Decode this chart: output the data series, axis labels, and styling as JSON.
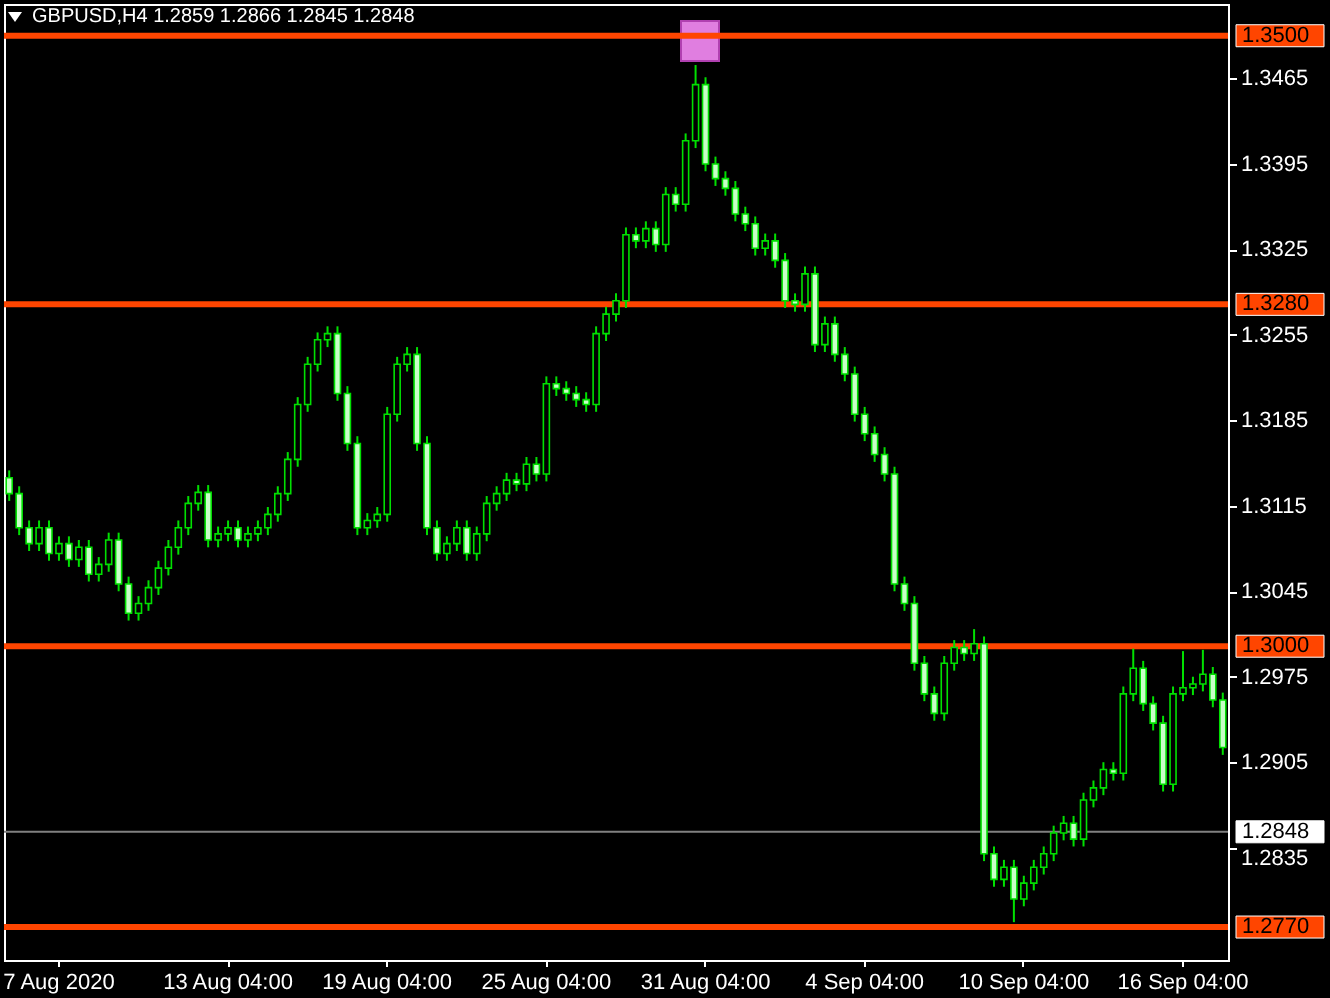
{
  "chart_data": {
    "type": "candlestick",
    "title": "GBPUSD,H4  1.2859 1.2866 1.2845 1.2848",
    "categories": [
      null,
      null,
      null,
      null,
      null,
      "7 Aug 2020",
      null,
      null,
      null,
      null,
      null,
      null,
      null,
      null,
      null,
      null,
      null,
      null,
      null,
      null,
      null,
      null,
      "13 Aug 04:00",
      null,
      null,
      null,
      null,
      null,
      null,
      null,
      null,
      null,
      null,
      null,
      null,
      null,
      null,
      null,
      "19 Aug 04:00",
      null,
      null,
      null,
      null,
      null,
      null,
      null,
      null,
      null,
      null,
      null,
      null,
      null,
      null,
      null,
      "25 Aug 04:00",
      null,
      null,
      null,
      null,
      null,
      null,
      null,
      null,
      null,
      null,
      null,
      null,
      null,
      null,
      null,
      "31 Aug 04:00",
      null,
      null,
      null,
      null,
      null,
      null,
      null,
      null,
      null,
      null,
      null,
      null,
      null,
      null,
      null,
      "4 Sep 04:00",
      null,
      null,
      null,
      null,
      null,
      null,
      null,
      null,
      null,
      null,
      null,
      null,
      null,
      null,
      null,
      "10 Sep 04:00",
      null,
      null,
      null,
      null,
      null,
      null,
      null,
      null,
      null,
      null,
      null,
      null,
      null,
      null,
      null,
      "16 Sep 04:00",
      null,
      null,
      null,
      null
    ],
    "ohlc": [
      [
        1.3138,
        1.3144,
        1.3119,
        1.3125
      ],
      [
        1.3125,
        1.3131,
        1.3091,
        1.3097
      ],
      [
        1.3097,
        1.3103,
        1.3078,
        1.3084
      ],
      [
        1.3084,
        1.3103,
        1.3078,
        1.3097
      ],
      [
        1.3097,
        1.3103,
        1.307,
        1.3076
      ],
      [
        1.3076,
        1.309,
        1.307,
        1.3084
      ],
      [
        1.3084,
        1.309,
        1.3065,
        1.3071
      ],
      [
        1.3071,
        1.3087,
        1.3065,
        1.3081
      ],
      [
        1.3081,
        1.3087,
        1.3053,
        1.3059
      ],
      [
        1.3059,
        1.3073,
        1.3053,
        1.3067
      ],
      [
        1.3067,
        1.3093,
        1.3061,
        1.3087
      ],
      [
        1.3087,
        1.3093,
        1.3045,
        1.3051
      ],
      [
        1.3051,
        1.3057,
        1.3021,
        1.3027
      ],
      [
        1.3027,
        1.3041,
        1.3021,
        1.3035
      ],
      [
        1.3035,
        1.3054,
        1.3029,
        1.3048
      ],
      [
        1.3048,
        1.307,
        1.3042,
        1.3064
      ],
      [
        1.3064,
        1.3087,
        1.3058,
        1.3081
      ],
      [
        1.3081,
        1.3103,
        1.3075,
        1.3097
      ],
      [
        1.3097,
        1.3123,
        1.3091,
        1.3117
      ],
      [
        1.3117,
        1.3132,
        1.3111,
        1.3126
      ],
      [
        1.3126,
        1.3132,
        1.3081,
        1.3087
      ],
      [
        1.3087,
        1.3098,
        1.3081,
        1.3092
      ],
      [
        1.3092,
        1.3103,
        1.3086,
        1.3097
      ],
      [
        1.3097,
        1.3103,
        1.3081,
        1.3087
      ],
      [
        1.3087,
        1.3098,
        1.3081,
        1.3092
      ],
      [
        1.3092,
        1.3103,
        1.3086,
        1.3097
      ],
      [
        1.3097,
        1.3114,
        1.3091,
        1.3108
      ],
      [
        1.3108,
        1.3131,
        1.3102,
        1.3125
      ],
      [
        1.3125,
        1.3159,
        1.3119,
        1.3153
      ],
      [
        1.3153,
        1.3204,
        1.3147,
        1.3198
      ],
      [
        1.3198,
        1.3237,
        1.3192,
        1.3231
      ],
      [
        1.3231,
        1.3257,
        1.3225,
        1.3251
      ],
      [
        1.3251,
        1.3262,
        1.3245,
        1.3256
      ],
      [
        1.3256,
        1.3262,
        1.3201,
        1.3207
      ],
      [
        1.3207,
        1.3213,
        1.316,
        1.3166
      ],
      [
        1.3166,
        1.3172,
        1.3091,
        1.3097
      ],
      [
        1.3097,
        1.3109,
        1.3091,
        1.3103
      ],
      [
        1.3103,
        1.3114,
        1.3097,
        1.3108
      ],
      [
        1.3108,
        1.3196,
        1.3102,
        1.319
      ],
      [
        1.319,
        1.3237,
        1.3184,
        1.3231
      ],
      [
        1.3231,
        1.3245,
        1.3225,
        1.3239
      ],
      [
        1.3239,
        1.3245,
        1.316,
        1.3166
      ],
      [
        1.3166,
        1.3172,
        1.3091,
        1.3097
      ],
      [
        1.3097,
        1.3103,
        1.307,
        1.3076
      ],
      [
        1.3076,
        1.309,
        1.307,
        1.3084
      ],
      [
        1.3084,
        1.3103,
        1.3078,
        1.3097
      ],
      [
        1.3097,
        1.3103,
        1.307,
        1.3076
      ],
      [
        1.3076,
        1.3098,
        1.307,
        1.3092
      ],
      [
        1.3092,
        1.3123,
        1.3086,
        1.3117
      ],
      [
        1.3117,
        1.3131,
        1.3111,
        1.3125
      ],
      [
        1.3125,
        1.3142,
        1.3119,
        1.3136
      ],
      [
        1.3136,
        1.3142,
        1.3127,
        1.3133
      ],
      [
        1.3133,
        1.3155,
        1.3127,
        1.3149
      ],
      [
        1.3149,
        1.3155,
        1.3135,
        1.3141
      ],
      [
        1.3141,
        1.3221,
        1.3135,
        1.3215
      ],
      [
        1.3215,
        1.3221,
        1.3205,
        1.3211
      ],
      [
        1.3211,
        1.3217,
        1.3201,
        1.3207
      ],
      [
        1.3207,
        1.3213,
        1.3196,
        1.3202
      ],
      [
        1.3202,
        1.3208,
        1.3192,
        1.3198
      ],
      [
        1.3198,
        1.3262,
        1.3192,
        1.3256
      ],
      [
        1.3256,
        1.3278,
        1.325,
        1.3272
      ],
      [
        1.3272,
        1.3289,
        1.3266,
        1.3283
      ],
      [
        1.3283,
        1.3343,
        1.3277,
        1.3337
      ],
      [
        1.3337,
        1.3343,
        1.3326,
        1.3332
      ],
      [
        1.3332,
        1.3348,
        1.3326,
        1.3342
      ],
      [
        1.3342,
        1.3348,
        1.3323,
        1.3329
      ],
      [
        1.3329,
        1.3376,
        1.3323,
        1.337
      ],
      [
        1.337,
        1.3376,
        1.3356,
        1.3362
      ],
      [
        1.3362,
        1.342,
        1.3356,
        1.3414
      ],
      [
        1.3414,
        1.3476,
        1.3408,
        1.346
      ],
      [
        1.346,
        1.3466,
        1.3389,
        1.3395
      ],
      [
        1.3395,
        1.3401,
        1.3377,
        1.3383
      ],
      [
        1.3383,
        1.3389,
        1.3369,
        1.3375
      ],
      [
        1.3375,
        1.3381,
        1.3348,
        1.3354
      ],
      [
        1.3354,
        1.336,
        1.334,
        1.3346
      ],
      [
        1.3346,
        1.3352,
        1.332,
        1.3326
      ],
      [
        1.3326,
        1.3338,
        1.332,
        1.3332
      ],
      [
        1.3332,
        1.3338,
        1.331,
        1.3316
      ],
      [
        1.3316,
        1.3322,
        1.3277,
        1.3283
      ],
      [
        1.3283,
        1.3289,
        1.3274,
        1.328
      ],
      [
        1.328,
        1.3311,
        1.3274,
        1.3305
      ],
      [
        1.3305,
        1.3311,
        1.3241,
        1.3247
      ],
      [
        1.3247,
        1.327,
        1.3241,
        1.3264
      ],
      [
        1.3264,
        1.327,
        1.3233,
        1.3239
      ],
      [
        1.3239,
        1.3245,
        1.3217,
        1.3223
      ],
      [
        1.3223,
        1.3229,
        1.3184,
        1.319
      ],
      [
        1.319,
        1.3196,
        1.3168,
        1.3174
      ],
      [
        1.3174,
        1.318,
        1.3151,
        1.3157
      ],
      [
        1.3157,
        1.3163,
        1.3135,
        1.3141
      ],
      [
        1.3141,
        1.3147,
        1.3045,
        1.3051
      ],
      [
        1.3051,
        1.3057,
        1.3029,
        1.3035
      ],
      [
        1.3035,
        1.3041,
        1.298,
        1.2986
      ],
      [
        1.2986,
        1.2992,
        1.2955,
        1.2961
      ],
      [
        1.2961,
        1.2967,
        1.2939,
        1.2945
      ],
      [
        1.2945,
        1.2992,
        1.2939,
        1.2986
      ],
      [
        1.2986,
        1.3005,
        1.298,
        1.2999
      ],
      [
        1.2999,
        1.3005,
        1.2988,
        1.2994
      ],
      [
        1.2994,
        1.3014,
        1.2988,
        1.3002
      ],
      [
        1.3002,
        1.3008,
        1.2824,
        1.283
      ],
      [
        1.283,
        1.2836,
        1.2803,
        1.2809
      ],
      [
        1.2809,
        1.2825,
        1.2803,
        1.2819
      ],
      [
        1.2819,
        1.2825,
        1.2774,
        1.2793
      ],
      [
        1.2793,
        1.2812,
        1.2787,
        1.2806
      ],
      [
        1.2806,
        1.2825,
        1.28,
        1.2819
      ],
      [
        1.2819,
        1.2836,
        1.2813,
        1.283
      ],
      [
        1.283,
        1.2853,
        1.2824,
        1.2847
      ],
      [
        1.2847,
        1.2861,
        1.2841,
        1.2855
      ],
      [
        1.2855,
        1.2861,
        1.2836,
        1.2842
      ],
      [
        1.2842,
        1.288,
        1.2836,
        1.2874
      ],
      [
        1.2874,
        1.289,
        1.2868,
        1.2884
      ],
      [
        1.2884,
        1.2905,
        1.2878,
        1.2899
      ],
      [
        1.2899,
        1.2905,
        1.289,
        1.2896
      ],
      [
        1.2896,
        1.2967,
        1.289,
        1.2961
      ],
      [
        1.2961,
        1.2998,
        1.2955,
        1.2982
      ],
      [
        1.2982,
        1.2988,
        1.2947,
        1.2953
      ],
      [
        1.2953,
        1.2959,
        1.2931,
        1.2937
      ],
      [
        1.2937,
        1.2943,
        1.2881,
        1.2887
      ],
      [
        1.2887,
        1.2967,
        1.2881,
        1.2961
      ],
      [
        1.2961,
        1.2996,
        1.2955,
        1.2966
      ],
      [
        1.2966,
        1.2975,
        1.296,
        1.2969
      ],
      [
        1.2969,
        1.2997,
        1.2963,
        1.2977
      ],
      [
        1.2977,
        1.2983,
        1.295,
        1.2956
      ],
      [
        1.2956,
        1.2962,
        1.2911,
        1.2917
      ]
    ],
    "ylim": [
      1.2743,
      1.3526
    ],
    "yticks": [
      1.3465,
      1.3395,
      1.3325,
      1.3255,
      1.3185,
      1.3115,
      1.3045,
      1.2975,
      1.2905,
      1.2835
    ],
    "ref_lines": [
      {
        "axis": "y",
        "value": 1.35,
        "label": "1.3500",
        "color": "#ff4500"
      },
      {
        "axis": "y",
        "value": 1.328,
        "label": "1.3280",
        "color": "#ff4500"
      },
      {
        "axis": "y",
        "value": 1.3,
        "label": "1.3000",
        "color": "#ff4500"
      },
      {
        "axis": "y",
        "value": 1.277,
        "label": "1.2770",
        "color": "#ff4500"
      },
      {
        "axis": "y",
        "value": 1.2848,
        "label": "1.2848",
        "color": "#808080"
      }
    ],
    "grid": false
  }
}
